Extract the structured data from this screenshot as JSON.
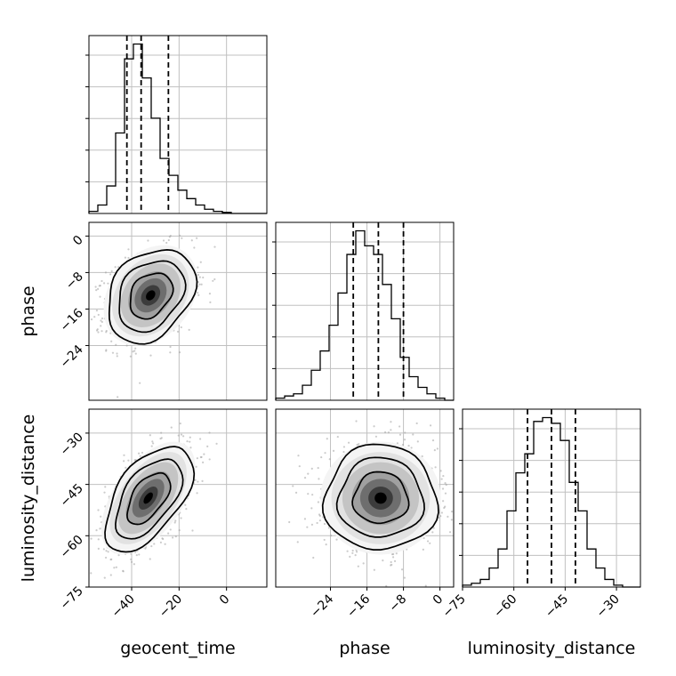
{
  "chart_data": {
    "type": "corner",
    "parameters": [
      "geocent_time",
      "phase",
      "luminosity_distance"
    ],
    "labels": {
      "geocent_time": "geocent_time",
      "phase": "phase",
      "luminosity_distance": "luminosity_distance"
    },
    "ranges": {
      "geocent_time": [
        -58,
        17
      ],
      "phase": [
        -36,
        3
      ],
      "luminosity_distance": [
        -75,
        -23
      ]
    },
    "ticks": {
      "geocent_time": [
        -40,
        -20,
        0
      ],
      "phase": [
        -24,
        -16,
        -8,
        0
      ],
      "luminosity_distance": [
        -75,
        -60,
        -45,
        -30
      ]
    },
    "quantiles": {
      "geocent_time": [
        -42,
        -36,
        -24.5
      ],
      "phase": [
        -19,
        -13.5,
        -8
      ],
      "luminosity_distance": [
        -56,
        -49,
        -42
      ]
    },
    "histograms": {
      "geocent_time": {
        "edges": [
          -58,
          -54.25,
          -50.5,
          -46.75,
          -43,
          -39.25,
          -35.5,
          -31.75,
          -28,
          -24.25,
          -20.5,
          -16.75,
          -13,
          -9.25,
          -5.5,
          -1.75,
          2,
          5.75,
          9.5,
          13.25,
          17
        ],
        "counts": [
          1,
          4,
          13,
          38,
          73,
          80,
          64,
          45,
          26,
          18,
          11,
          7,
          4,
          2,
          1,
          0.5,
          0,
          0,
          0,
          0
        ]
      },
      "phase": {
        "edges": [
          -36,
          -34.05,
          -32.1,
          -30.15,
          -28.2,
          -26.25,
          -24.3,
          -22.35,
          -20.4,
          -18.45,
          -16.5,
          -14.55,
          -12.6,
          -10.65,
          -8.7,
          -6.75,
          -4.8,
          -2.85,
          -0.9,
          1.05,
          3
        ],
        "counts": [
          1,
          2,
          3,
          7,
          14,
          23,
          35,
          50,
          68,
          79,
          72,
          68,
          54,
          38,
          20,
          11,
          6,
          3,
          1,
          0
        ]
      },
      "luminosity_distance": {
        "edges": [
          -75,
          -72.4,
          -69.8,
          -67.2,
          -64.6,
          -62,
          -59.4,
          -56.8,
          -54.2,
          -51.6,
          -49,
          -46.4,
          -43.8,
          -41.2,
          -38.6,
          -36,
          -33.4,
          -30.8,
          -28.2,
          -25.6,
          -23
        ],
        "counts": [
          1,
          2,
          4,
          10,
          20,
          40,
          60,
          70,
          87,
          89,
          86,
          77,
          55,
          40,
          20,
          10,
          4,
          1,
          0,
          0
        ]
      }
    },
    "scatter_2d": [
      {
        "x": "geocent_time",
        "y": "phase",
        "mean": [
          -32,
          -13
        ],
        "sd": [
          9,
          5
        ],
        "corr": 0.28
      },
      {
        "x": "geocent_time",
        "y": "luminosity_distance",
        "mean": [
          -33,
          -49
        ],
        "sd": [
          9,
          7.5
        ],
        "corr": 0.55
      },
      {
        "x": "phase",
        "y": "luminosity_distance",
        "mean": [
          -13,
          -49
        ],
        "sd": [
          6,
          7.5
        ],
        "corr": 0.0
      }
    ],
    "grid": true,
    "colors": {
      "ink": "#000000",
      "density": "#000000",
      "points": "#a0a0a0",
      "grid": "#c0c0c0"
    }
  }
}
